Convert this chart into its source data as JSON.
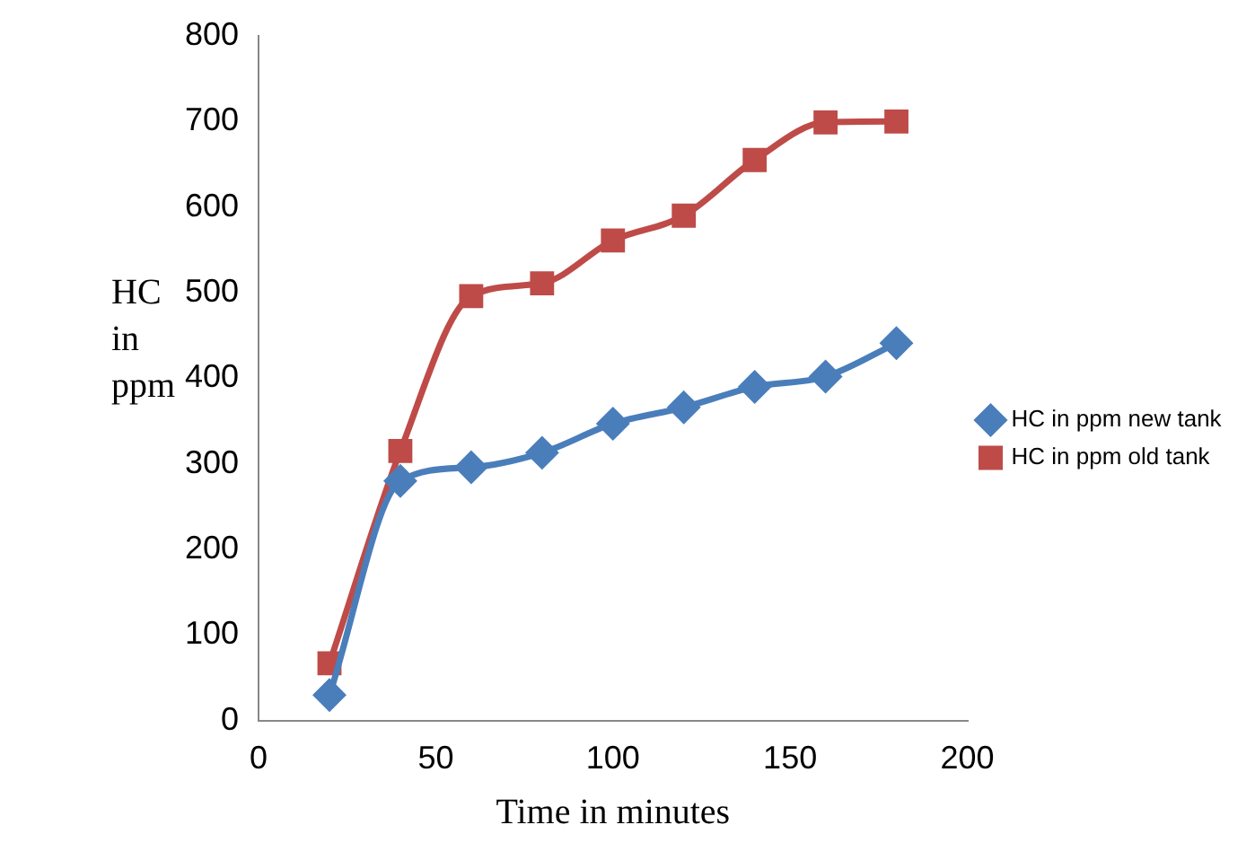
{
  "chart_data": {
    "type": "line",
    "xlabel": "Time in minutes",
    "ylabel": "HC in ppm",
    "x": [
      20,
      40,
      60,
      80,
      100,
      120,
      140,
      160,
      180
    ],
    "series": [
      {
        "name": "HC in ppm new tank",
        "color": "#4a7ebb",
        "marker": "diamond",
        "values": [
          30,
          280,
          296,
          313,
          347,
          366,
          390,
          402,
          441
        ]
      },
      {
        "name": "HC in ppm old tank",
        "color": "#be4b48",
        "marker": "square",
        "values": [
          67,
          315,
          496,
          511,
          561,
          590,
          655,
          699,
          700
        ]
      }
    ],
    "xlim": [
      0,
      200
    ],
    "xticks": [
      0,
      50,
      100,
      150,
      200
    ],
    "ylim": [
      0,
      800
    ],
    "yticks": [
      0,
      100,
      200,
      300,
      400,
      500,
      600,
      700,
      800
    ],
    "grid": false,
    "legend": "right"
  }
}
